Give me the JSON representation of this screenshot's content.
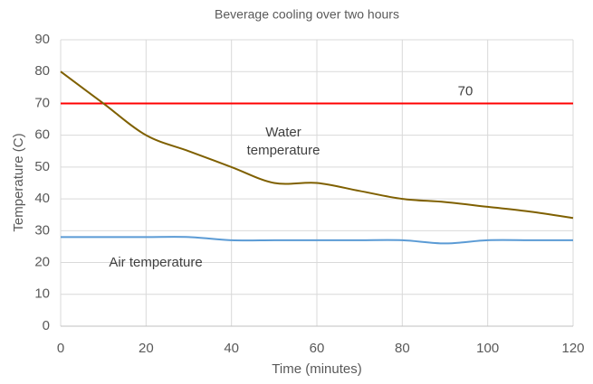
{
  "chart_data": {
    "type": "line",
    "title": "Beverage cooling over two hours",
    "x_label": "Time (minutes)",
    "y_label": "Temperature (C)",
    "x": [
      0,
      10,
      20,
      30,
      40,
      50,
      60,
      70,
      80,
      90,
      100,
      110,
      120
    ],
    "series": [
      {
        "name": "Water temperature",
        "color": "#7f6000",
        "values": [
          80,
          70,
          60,
          55,
          50,
          45,
          45,
          42.5,
          40,
          39,
          37.5,
          36,
          34
        ]
      },
      {
        "name": "Air temperature",
        "color": "#5b9bd5",
        "values": [
          28,
          28,
          28,
          28,
          27,
          27,
          27,
          27,
          27,
          26,
          27,
          27,
          27
        ]
      }
    ],
    "reference_line": {
      "value": 70,
      "color": "#ff0000"
    },
    "xlim": [
      0,
      120
    ],
    "xticks": [
      0,
      20,
      40,
      60,
      80,
      100,
      120
    ],
    "ylim": [
      0,
      90
    ],
    "yticks": [
      0,
      10,
      20,
      30,
      40,
      50,
      60,
      70,
      80,
      90
    ],
    "grid": true
  }
}
